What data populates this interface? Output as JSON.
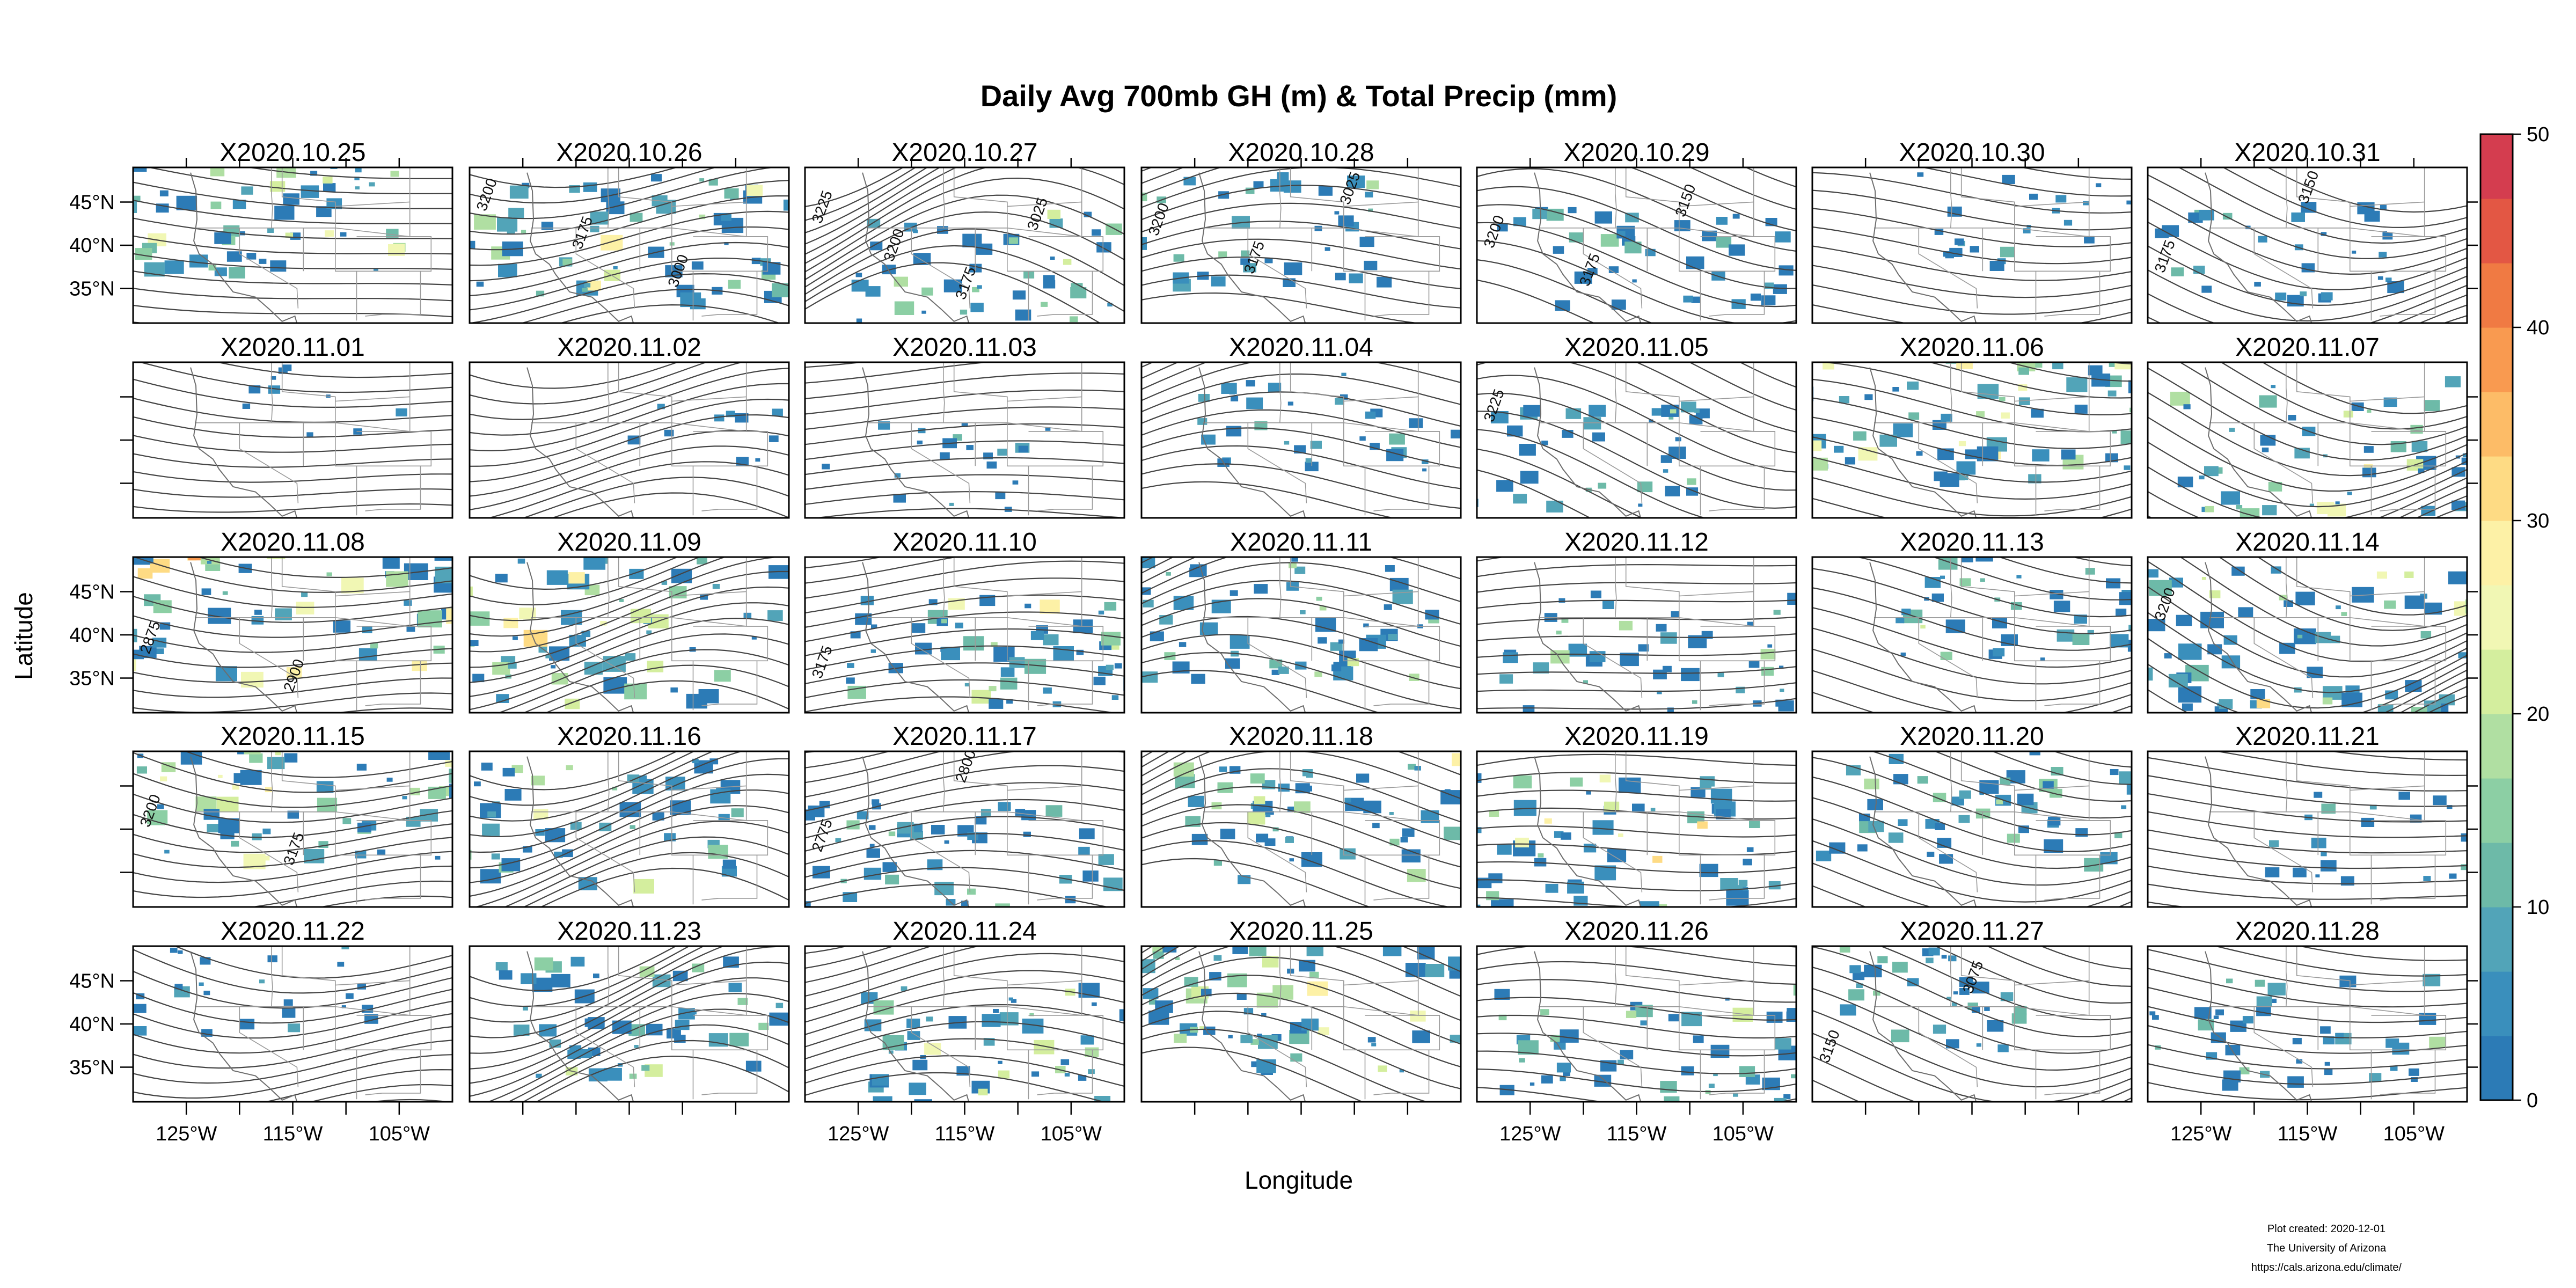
{
  "figure": {
    "title": "Daily Avg 700mb GH (m) & Total Precip (mm)",
    "xlabel": "Longitude",
    "ylabel": "Latitude",
    "lon_tick_labels": [
      "125°W",
      "115°W",
      "105°W"
    ],
    "lat_tick_labels": [
      "45°N",
      "40°N",
      "35°N"
    ],
    "credit_lines": [
      "Plot created: 2020-12-01",
      "The University of Arizona",
      "https://cals.arizona.edu/climate/"
    ]
  },
  "layout_grid": {
    "rows": 5,
    "cols": 7
  },
  "colorbar": {
    "min": 0,
    "max": 50,
    "tick_labels": [
      "0",
      "10",
      "20",
      "30",
      "40",
      "50"
    ],
    "colors": [
      "#2c7bb6",
      "#3a8fbc",
      "#52a4b8",
      "#6dbaa8",
      "#8ccfa4",
      "#b0dfa2",
      "#d4ee9e",
      "#f1f7b4",
      "#fdf1a6",
      "#fedb84",
      "#fdbc67",
      "#f99a50",
      "#f07a43",
      "#e35744",
      "#d43d4f"
    ]
  },
  "panels": [
    {
      "date": "X2020.10.25",
      "precip_level": 0.55,
      "contour_labels": []
    },
    {
      "date": "X2020.10.26",
      "precip_level": 0.6,
      "contour_labels": [
        "3200",
        "3175",
        "3000"
      ]
    },
    {
      "date": "X2020.10.27",
      "precip_level": 0.45,
      "contour_labels": [
        "3225",
        "3200",
        "3175",
        "3025"
      ]
    },
    {
      "date": "X2020.10.28",
      "precip_level": 0.35,
      "contour_labels": [
        "3200",
        "3175",
        "3025"
      ]
    },
    {
      "date": "X2020.10.29",
      "precip_level": 0.3,
      "contour_labels": [
        "3200",
        "3175",
        "3150"
      ]
    },
    {
      "date": "X2020.10.30",
      "precip_level": 0.15,
      "contour_labels": []
    },
    {
      "date": "X2020.10.31",
      "precip_level": 0.25,
      "contour_labels": [
        "3175",
        "3150"
      ]
    },
    {
      "date": "X2020.11.01",
      "precip_level": 0.02,
      "contour_labels": []
    },
    {
      "date": "X2020.11.02",
      "precip_level": 0.02,
      "contour_labels": []
    },
    {
      "date": "X2020.11.03",
      "precip_level": 0.12,
      "contour_labels": []
    },
    {
      "date": "X2020.11.04",
      "precip_level": 0.25,
      "contour_labels": []
    },
    {
      "date": "X2020.11.05",
      "precip_level": 0.3,
      "contour_labels": [
        "3225"
      ]
    },
    {
      "date": "X2020.11.06",
      "precip_level": 0.55,
      "contour_labels": []
    },
    {
      "date": "X2020.11.07",
      "precip_level": 0.6,
      "contour_labels": []
    },
    {
      "date": "X2020.11.08",
      "precip_level": 0.8,
      "contour_labels": [
        "2875",
        "2900"
      ]
    },
    {
      "date": "X2020.11.09",
      "precip_level": 0.75,
      "contour_labels": []
    },
    {
      "date": "X2020.11.10",
      "precip_level": 0.55,
      "contour_labels": [
        "3175"
      ]
    },
    {
      "date": "X2020.11.11",
      "precip_level": 0.5,
      "contour_labels": []
    },
    {
      "date": "X2020.11.12",
      "precip_level": 0.45,
      "contour_labels": []
    },
    {
      "date": "X2020.11.13",
      "precip_level": 0.4,
      "contour_labels": []
    },
    {
      "date": "X2020.11.14",
      "precip_level": 0.7,
      "contour_labels": [
        "3200"
      ]
    },
    {
      "date": "X2020.11.15",
      "precip_level": 0.6,
      "contour_labels": [
        "3200",
        "3175"
      ]
    },
    {
      "date": "X2020.11.16",
      "precip_level": 0.55,
      "contour_labels": []
    },
    {
      "date": "X2020.11.17",
      "precip_level": 0.4,
      "contour_labels": [
        "2775",
        "2800"
      ]
    },
    {
      "date": "X2020.11.18",
      "precip_level": 0.55,
      "contour_labels": []
    },
    {
      "date": "X2020.11.19",
      "precip_level": 0.65,
      "contour_labels": []
    },
    {
      "date": "X2020.11.20",
      "precip_level": 0.4,
      "contour_labels": []
    },
    {
      "date": "X2020.11.21",
      "precip_level": 0.15,
      "contour_labels": []
    },
    {
      "date": "X2020.11.22",
      "precip_level": 0.15,
      "contour_labels": []
    },
    {
      "date": "X2020.11.23",
      "precip_level": 0.45,
      "contour_labels": []
    },
    {
      "date": "X2020.11.24",
      "precip_level": 0.55,
      "contour_labels": []
    },
    {
      "date": "X2020.11.25",
      "precip_level": 0.55,
      "contour_labels": []
    },
    {
      "date": "X2020.11.26",
      "precip_level": 0.5,
      "contour_labels": []
    },
    {
      "date": "X2020.11.27",
      "precip_level": 0.3,
      "contour_labels": [
        "3150",
        "3075"
      ]
    },
    {
      "date": "X2020.11.28",
      "precip_level": 0.3,
      "contour_labels": []
    }
  ]
}
